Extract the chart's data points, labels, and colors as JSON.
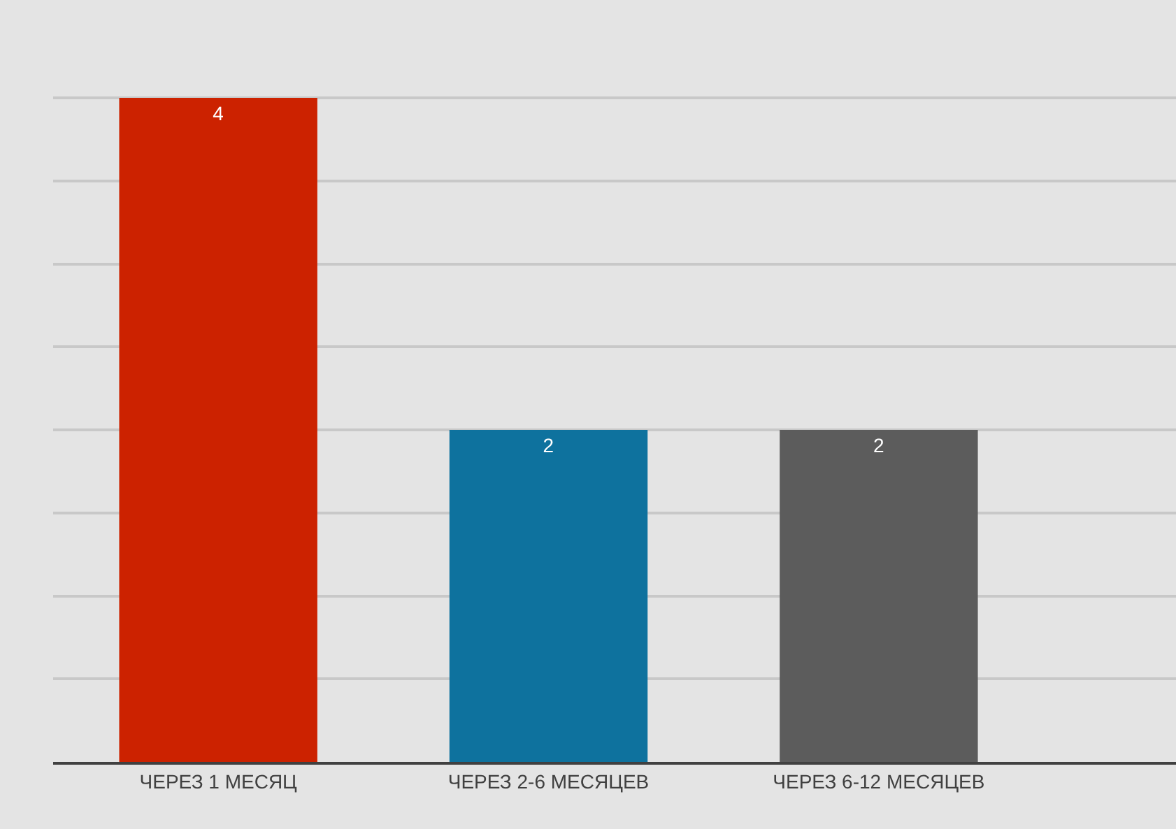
{
  "chart_data": {
    "type": "bar",
    "categories": [
      "ЧЕРЕЗ 1 МЕСЯЦ",
      "ЧЕРЕЗ 2-6 МЕСЯЦЕВ",
      "ЧЕРЕЗ 6-12 МЕСЯЦЕВ"
    ],
    "values": [
      4,
      2,
      2
    ],
    "colors": [
      "#cc2200",
      "#0e729e",
      "#5c5c5c"
    ],
    "yticks": [
      {
        "value": 0,
        "label": null
      },
      {
        "value": 0.5,
        "label": null
      },
      {
        "value": 1,
        "label": null
      },
      {
        "value": 1.5,
        "label": null
      },
      {
        "value": 2,
        "label": null
      },
      {
        "value": 2.5,
        "label": null
      },
      {
        "value": 3,
        "label": null
      },
      {
        "value": 3.5,
        "label": null
      },
      {
        "value": 4,
        "label": null
      }
    ],
    "grid": "y",
    "tick_labels": "x",
    "data_labels": true
  }
}
